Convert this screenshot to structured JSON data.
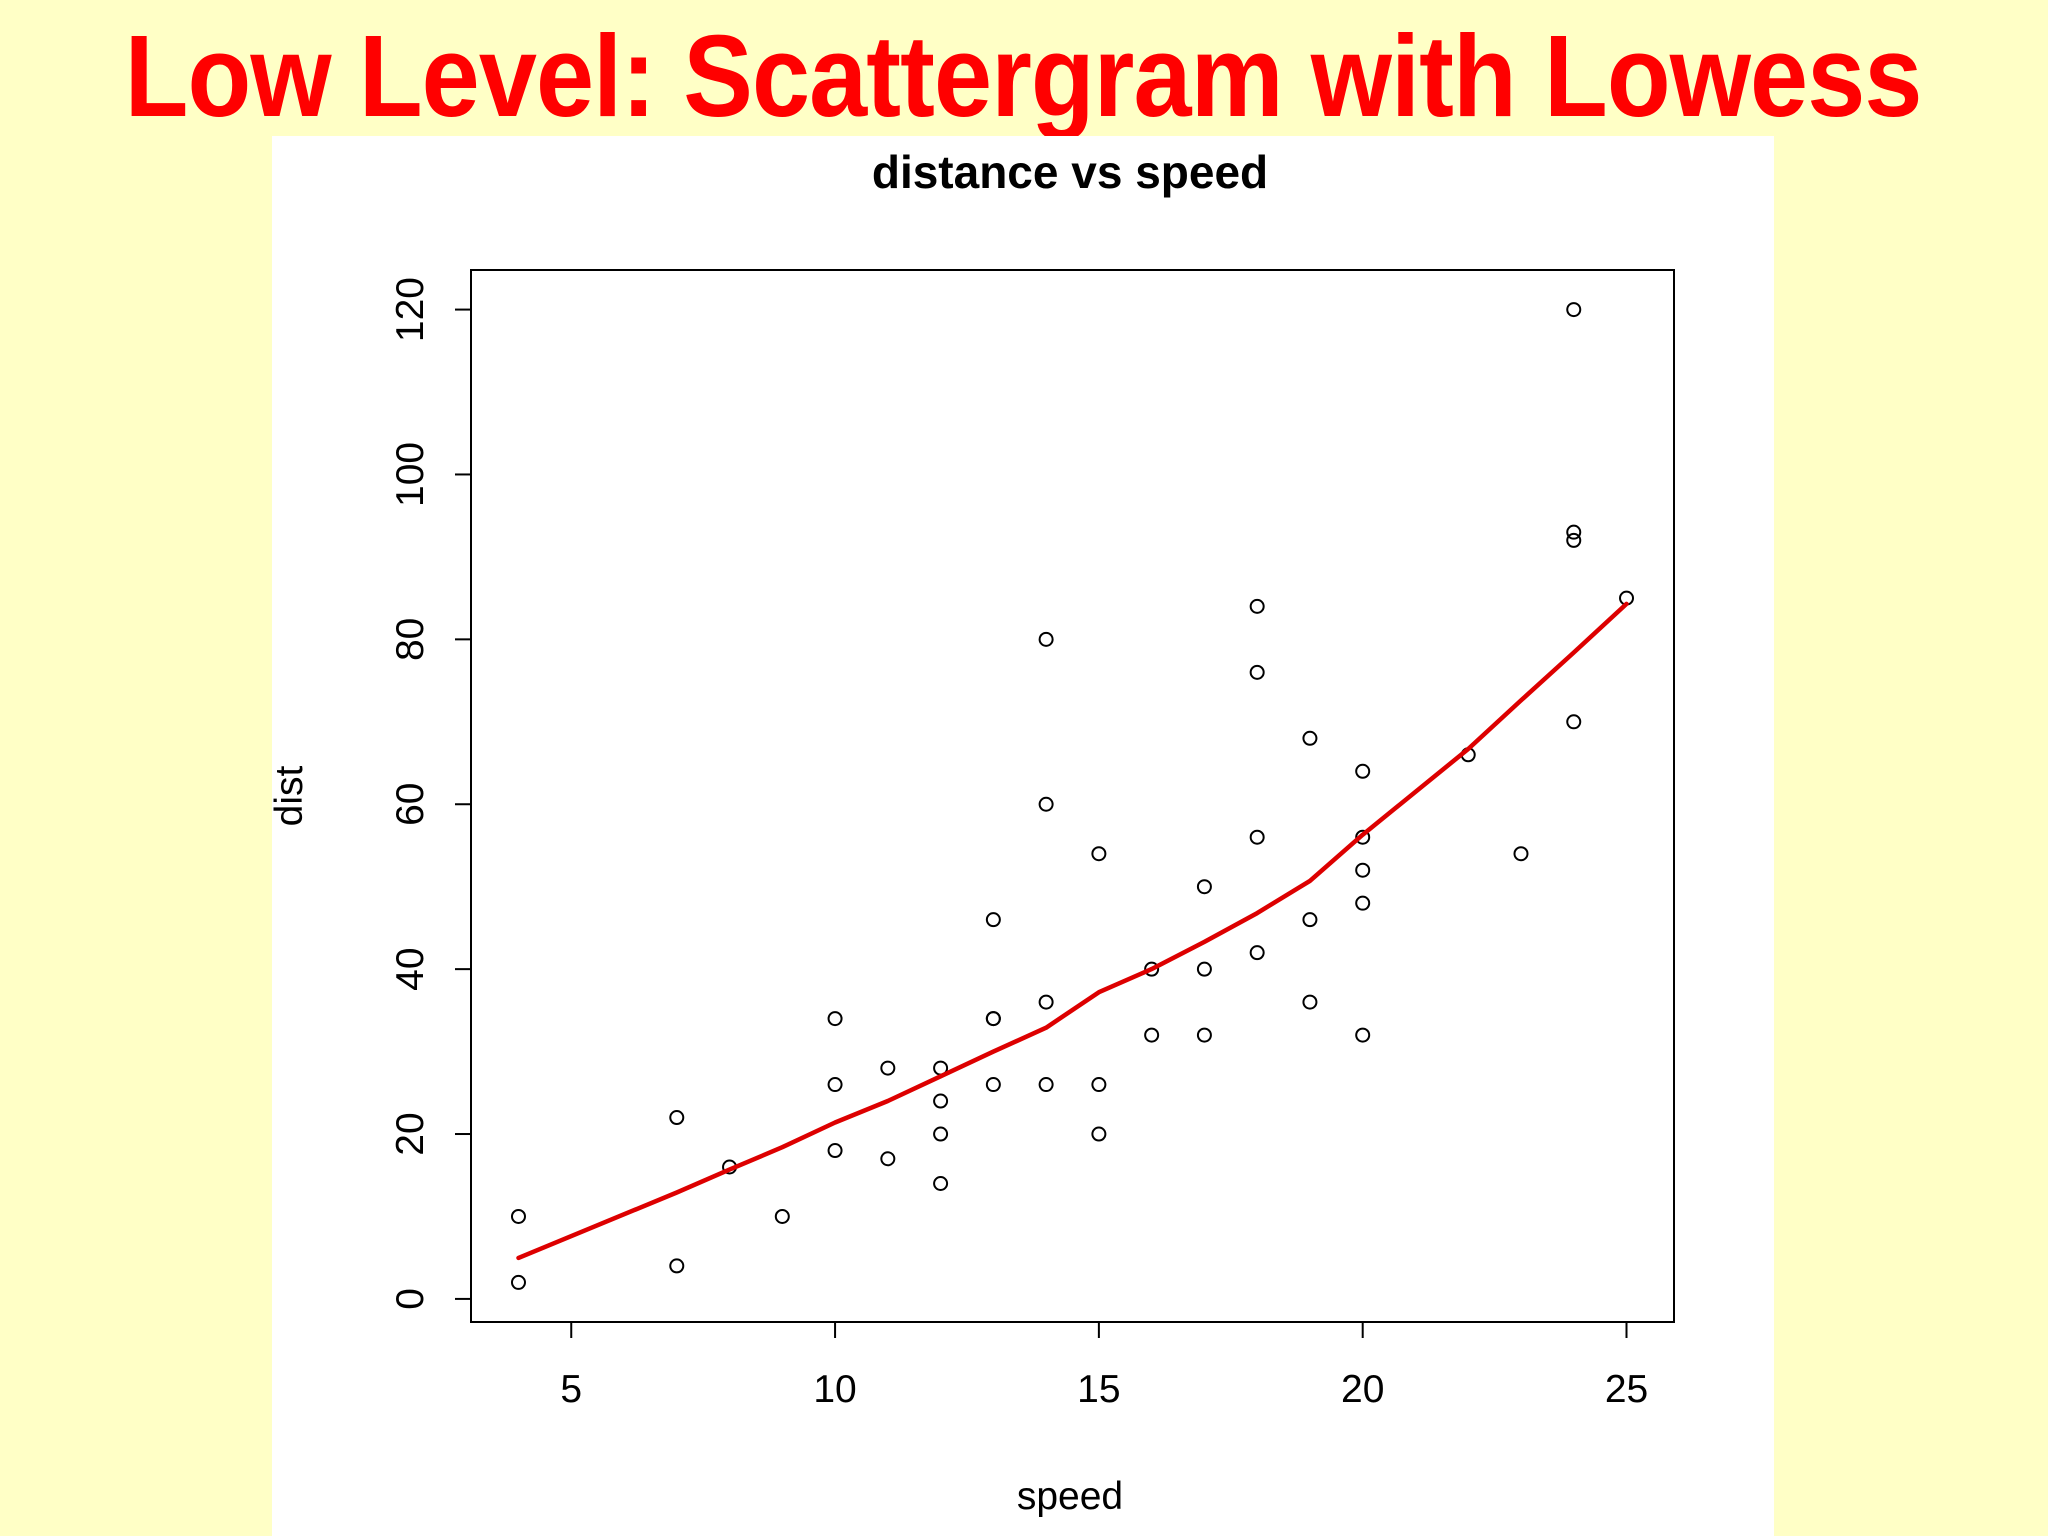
{
  "slide": {
    "title": "Low Level: Scattergram with Lowess"
  },
  "colors": {
    "background": "#ffffc6",
    "title": "#ff0000",
    "lowess": "#dd0000",
    "points": "#000000"
  },
  "chart_data": {
    "type": "scatter",
    "title": "distance vs speed",
    "xlabel": "speed",
    "ylabel": "dist",
    "xlim": [
      3.1,
      25.9
    ],
    "ylim": [
      -2.8,
      124.8
    ],
    "xticks": [
      5,
      10,
      15,
      20,
      25
    ],
    "yticks": [
      0,
      20,
      40,
      60,
      80,
      100,
      120
    ],
    "grid": false,
    "legend": "none",
    "points": [
      [
        4,
        2
      ],
      [
        4,
        10
      ],
      [
        7,
        4
      ],
      [
        7,
        22
      ],
      [
        8,
        16
      ],
      [
        9,
        10
      ],
      [
        10,
        18
      ],
      [
        10,
        26
      ],
      [
        10,
        34
      ],
      [
        11,
        17
      ],
      [
        11,
        28
      ],
      [
        12,
        14
      ],
      [
        12,
        20
      ],
      [
        12,
        24
      ],
      [
        12,
        28
      ],
      [
        13,
        26
      ],
      [
        13,
        34
      ],
      [
        13,
        34
      ],
      [
        13,
        46
      ],
      [
        14,
        26
      ],
      [
        14,
        36
      ],
      [
        14,
        60
      ],
      [
        14,
        80
      ],
      [
        15,
        20
      ],
      [
        15,
        26
      ],
      [
        15,
        54
      ],
      [
        16,
        32
      ],
      [
        16,
        40
      ],
      [
        17,
        32
      ],
      [
        17,
        40
      ],
      [
        17,
        50
      ],
      [
        18,
        42
      ],
      [
        18,
        56
      ],
      [
        18,
        76
      ],
      [
        18,
        84
      ],
      [
        19,
        36
      ],
      [
        19,
        46
      ],
      [
        19,
        68
      ],
      [
        20,
        32
      ],
      [
        20,
        48
      ],
      [
        20,
        52
      ],
      [
        20,
        56
      ],
      [
        20,
        64
      ],
      [
        22,
        66
      ],
      [
        23,
        54
      ],
      [
        24,
        70
      ],
      [
        24,
        92
      ],
      [
        24,
        93
      ],
      [
        24,
        120
      ],
      [
        25,
        85
      ]
    ],
    "lowess": {
      "name": "lowess",
      "x": [
        4,
        7,
        8,
        9,
        10,
        11,
        12,
        13,
        14,
        15,
        16,
        17,
        18,
        19,
        20,
        22,
        23,
        24,
        25
      ],
      "y": [
        4.97,
        12.91,
        15.68,
        18.4,
        21.4,
        24.0,
        27.0,
        30.0,
        32.9,
        37.2,
        40.0,
        43.3,
        46.8,
        50.7,
        56.3,
        66.7,
        72.6,
        78.4,
        84.3
      ]
    }
  }
}
